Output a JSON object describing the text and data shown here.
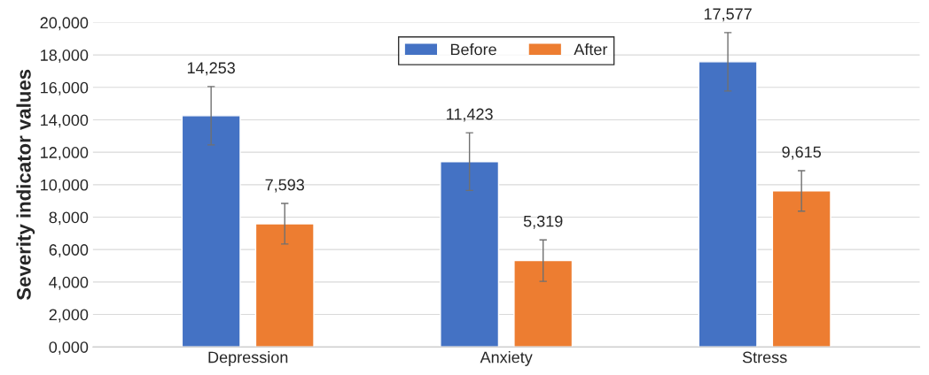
{
  "chart_data": {
    "type": "bar",
    "ylabel": "Severity indicator values",
    "categories": [
      "Depression",
      "Anxiety",
      "Stress"
    ],
    "series": [
      {
        "name": "Before",
        "color": "#4472c4",
        "values": [
          14253,
          11423,
          17577
        ],
        "errors": [
          1800,
          1780,
          1800
        ],
        "value_labels": [
          "14,253",
          "11,423",
          "17,577"
        ]
      },
      {
        "name": "After",
        "color": "#ed7d31",
        "values": [
          7593,
          5319,
          9615
        ],
        "errors": [
          1250,
          1280,
          1250
        ],
        "value_labels": [
          "7,593",
          "5,319",
          "9,615"
        ]
      }
    ],
    "ylim": [
      0,
      20000
    ],
    "yticks": [
      {
        "value": 0,
        "label": "0,000"
      },
      {
        "value": 2000,
        "label": "2,000"
      },
      {
        "value": 4000,
        "label": "4,000"
      },
      {
        "value": 6000,
        "label": "6,000"
      },
      {
        "value": 8000,
        "label": "8,000"
      },
      {
        "value": 10000,
        "label": "10,000"
      },
      {
        "value": 12000,
        "label": "12,000"
      },
      {
        "value": 14000,
        "label": "14,000"
      },
      {
        "value": 16000,
        "label": "16,000"
      },
      {
        "value": 18000,
        "label": "18,000"
      },
      {
        "value": 20000,
        "label": "20,000"
      }
    ],
    "grid": "y",
    "legend": "top"
  }
}
